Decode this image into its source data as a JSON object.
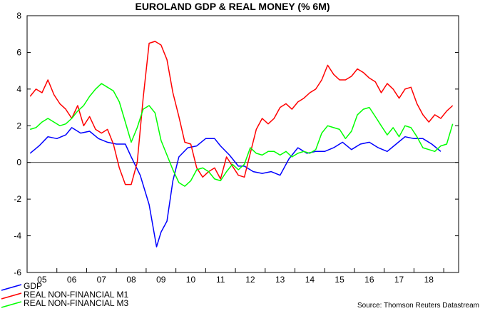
{
  "chart_data": {
    "type": "line",
    "title": "EUROLAND GDP & REAL MONEY (% 6M)",
    "source": "Source: Thomson Reuters Datastream",
    "xlabel": "",
    "ylabel": "",
    "ylim": [
      -6,
      8
    ],
    "xlim": [
      2004.5,
      2019.0
    ],
    "yticks": [
      -6,
      -4,
      -2,
      0,
      2,
      4,
      6,
      8
    ],
    "xtick_labels": [
      "05",
      "06",
      "07",
      "08",
      "09",
      "10",
      "11",
      "12",
      "13",
      "14",
      "15",
      "16",
      "17",
      "18"
    ],
    "xtick_positions": [
      2005,
      2006,
      2007,
      2008,
      2009,
      2010,
      2011,
      2012,
      2013,
      2014,
      2015,
      2016,
      2017,
      2018
    ],
    "zero_line": true,
    "legend_position": "bottom-left",
    "series": [
      {
        "name": "GDP",
        "color": "#0000ff",
        "x": [
          2004.6,
          2004.9,
          2005.2,
          2005.5,
          2005.8,
          2006.0,
          2006.3,
          2006.6,
          2006.9,
          2007.2,
          2007.5,
          2007.8,
          2008.0,
          2008.3,
          2008.6,
          2008.85,
          2009.0,
          2009.2,
          2009.4,
          2009.6,
          2009.9,
          2010.2,
          2010.5,
          2010.8,
          2011.0,
          2011.3,
          2011.6,
          2011.8,
          2012.1,
          2012.4,
          2012.7,
          2013.0,
          2013.3,
          2013.6,
          2013.9,
          2014.2,
          2014.5,
          2014.8,
          2015.1,
          2015.4,
          2015.7,
          2016.0,
          2016.3,
          2016.6,
          2016.9,
          2017.2,
          2017.5,
          2017.8,
          2018.1,
          2018.4
        ],
        "values": [
          0.5,
          0.9,
          1.4,
          1.3,
          1.5,
          1.9,
          1.6,
          1.7,
          1.3,
          1.1,
          1.0,
          1.0,
          0.3,
          -0.7,
          -2.3,
          -4.6,
          -3.8,
          -3.2,
          -1.0,
          0.3,
          0.8,
          0.9,
          1.3,
          1.3,
          0.9,
          0.4,
          -0.2,
          -0.2,
          -0.5,
          -0.6,
          -0.5,
          -0.7,
          0.2,
          0.8,
          0.5,
          0.6,
          0.6,
          0.8,
          1.1,
          0.7,
          1.0,
          1.1,
          0.8,
          0.6,
          1.0,
          1.4,
          1.3,
          1.3,
          1.0,
          0.6
        ]
      },
      {
        "name": "REAL NON-FINANCIAL M1",
        "color": "#ff0000",
        "x": [
          2004.6,
          2004.8,
          2005.0,
          2005.2,
          2005.4,
          2005.6,
          2005.8,
          2006.0,
          2006.2,
          2006.4,
          2006.6,
          2006.8,
          2007.0,
          2007.2,
          2007.4,
          2007.6,
          2007.8,
          2008.0,
          2008.2,
          2008.4,
          2008.6,
          2008.8,
          2009.0,
          2009.2,
          2009.4,
          2009.6,
          2009.8,
          2010.0,
          2010.2,
          2010.4,
          2010.6,
          2010.8,
          2011.0,
          2011.2,
          2011.4,
          2011.6,
          2011.8,
          2012.0,
          2012.2,
          2012.4,
          2012.6,
          2012.8,
          2013.0,
          2013.2,
          2013.4,
          2013.6,
          2013.8,
          2014.0,
          2014.2,
          2014.4,
          2014.6,
          2014.8,
          2015.0,
          2015.2,
          2015.4,
          2015.6,
          2015.8,
          2016.0,
          2016.2,
          2016.4,
          2016.6,
          2016.8,
          2017.0,
          2017.2,
          2017.4,
          2017.6,
          2017.8,
          2018.0,
          2018.2,
          2018.4,
          2018.6,
          2018.8
        ],
        "values": [
          3.6,
          4.0,
          3.8,
          4.5,
          3.7,
          3.2,
          2.9,
          2.4,
          3.1,
          2.0,
          2.5,
          1.8,
          1.6,
          1.8,
          1.0,
          -0.3,
          -1.2,
          -1.2,
          0.0,
          3.5,
          6.5,
          6.6,
          6.4,
          5.6,
          3.8,
          2.5,
          1.1,
          1.0,
          -0.3,
          -0.8,
          -0.5,
          -0.3,
          -0.9,
          0.3,
          -0.2,
          -0.7,
          -0.8,
          0.5,
          1.8,
          2.4,
          2.1,
          2.4,
          3.0,
          3.2,
          2.9,
          3.3,
          3.5,
          3.8,
          4.0,
          4.5,
          5.3,
          4.8,
          4.5,
          4.5,
          4.7,
          5.1,
          4.9,
          4.6,
          4.4,
          3.8,
          4.3,
          4.0,
          3.5,
          4.0,
          4.1,
          3.2,
          2.6,
          2.2,
          2.6,
          2.4,
          2.8,
          3.1
        ]
      },
      {
        "name": "REAL NON-FINANCIAL M3",
        "color": "#00ff00",
        "x": [
          2004.6,
          2004.8,
          2005.0,
          2005.2,
          2005.4,
          2005.6,
          2005.8,
          2006.0,
          2006.2,
          2006.4,
          2006.6,
          2006.8,
          2007.0,
          2007.2,
          2007.4,
          2007.6,
          2007.8,
          2008.0,
          2008.2,
          2008.4,
          2008.6,
          2008.8,
          2009.0,
          2009.2,
          2009.4,
          2009.6,
          2009.8,
          2010.0,
          2010.2,
          2010.4,
          2010.6,
          2010.8,
          2011.0,
          2011.2,
          2011.4,
          2011.6,
          2011.8,
          2012.0,
          2012.2,
          2012.4,
          2012.6,
          2012.8,
          2013.0,
          2013.2,
          2013.4,
          2013.6,
          2013.8,
          2014.0,
          2014.2,
          2014.4,
          2014.6,
          2014.8,
          2015.0,
          2015.2,
          2015.4,
          2015.6,
          2015.8,
          2016.0,
          2016.2,
          2016.4,
          2016.6,
          2016.8,
          2017.0,
          2017.2,
          2017.4,
          2017.6,
          2017.8,
          2018.0,
          2018.2,
          2018.4,
          2018.6,
          2018.8
        ],
        "values": [
          1.8,
          1.9,
          2.2,
          2.4,
          2.2,
          2.0,
          2.1,
          2.4,
          2.8,
          3.1,
          3.6,
          4.0,
          4.3,
          4.1,
          3.9,
          3.3,
          2.2,
          1.1,
          1.9,
          2.9,
          3.1,
          2.7,
          1.2,
          0.4,
          -0.4,
          -1.1,
          -1.3,
          -1.0,
          -0.4,
          -0.3,
          -0.5,
          -0.9,
          -1.0,
          -0.5,
          -0.1,
          -0.4,
          -0.1,
          0.8,
          0.5,
          0.4,
          0.6,
          0.6,
          0.4,
          0.6,
          0.3,
          0.5,
          0.6,
          0.5,
          0.7,
          1.6,
          2.0,
          1.9,
          1.8,
          1.3,
          1.7,
          2.6,
          2.9,
          3.0,
          2.5,
          2.0,
          1.5,
          1.9,
          1.4,
          2.0,
          1.9,
          1.4,
          0.8,
          0.7,
          0.6,
          0.9,
          1.0,
          2.1
        ]
      }
    ]
  }
}
